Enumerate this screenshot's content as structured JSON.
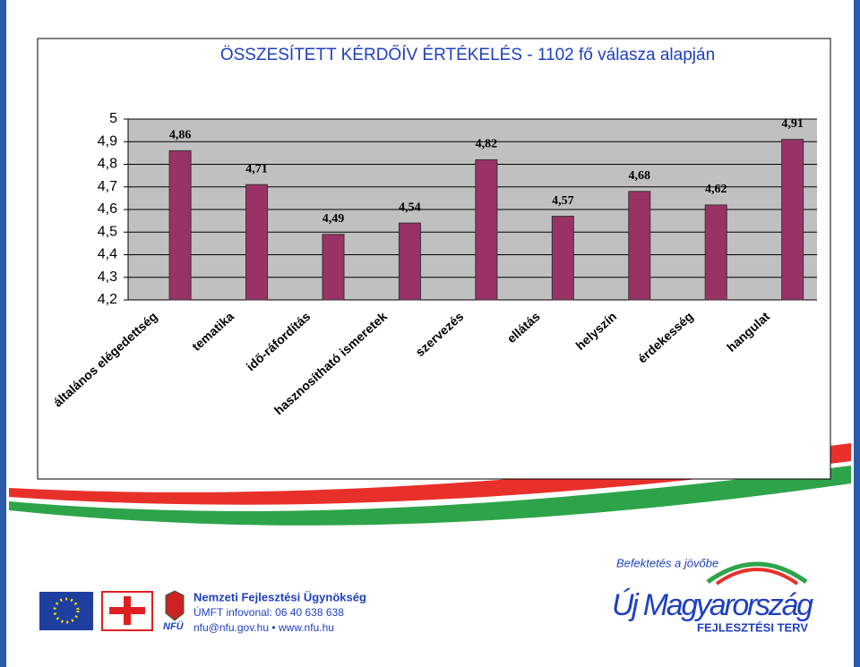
{
  "chart_data": {
    "type": "bar",
    "title": "ÖSSZESÍTETT KÉRDŐÍV ÉRTÉKELÉS - 1102 fő válasza alapján",
    "categories": [
      "általános elégedettség",
      "tematika",
      "idő-ráfordítás",
      "hasznosítható ismeretek",
      "szervezés",
      "ellátás",
      "helyszín",
      "érdekesség",
      "hangulat"
    ],
    "values": [
      4.86,
      4.71,
      4.49,
      4.54,
      4.82,
      4.57,
      4.68,
      4.62,
      4.91
    ],
    "value_labels": [
      "4,86",
      "4,71",
      "4,49",
      "4,54",
      "4,82",
      "4,57",
      "4,68",
      "4,62",
      "4,91"
    ],
    "color": "#993366",
    "ylim": [
      4.2,
      5
    ],
    "yticks": [
      {
        "value": 4.2,
        "label": "4,2"
      },
      {
        "value": 4.3,
        "label": "4,3"
      },
      {
        "value": 4.4,
        "label": "4,4"
      },
      {
        "value": 4.5,
        "label": "4,5"
      },
      {
        "value": 4.6,
        "label": "4,6"
      },
      {
        "value": 4.7,
        "label": "4,7"
      },
      {
        "value": 4.8,
        "label": "4,8"
      },
      {
        "value": 4.9,
        "label": "4,9"
      },
      5
    ],
    "grid": true
  },
  "footer": {
    "agency": "Nemzeti Fejlesztési Ügynökség",
    "phone": "ÚMFT infovonal: 06 40 638 638",
    "contact": "nfu@nfu.gov.hu • www.nfu.hu",
    "acronym": "NFÜ",
    "slogan": "Befektetés a jövőbe",
    "brand": "Új Magyarország",
    "plan": "FEJLESZTÉSI TERV"
  }
}
